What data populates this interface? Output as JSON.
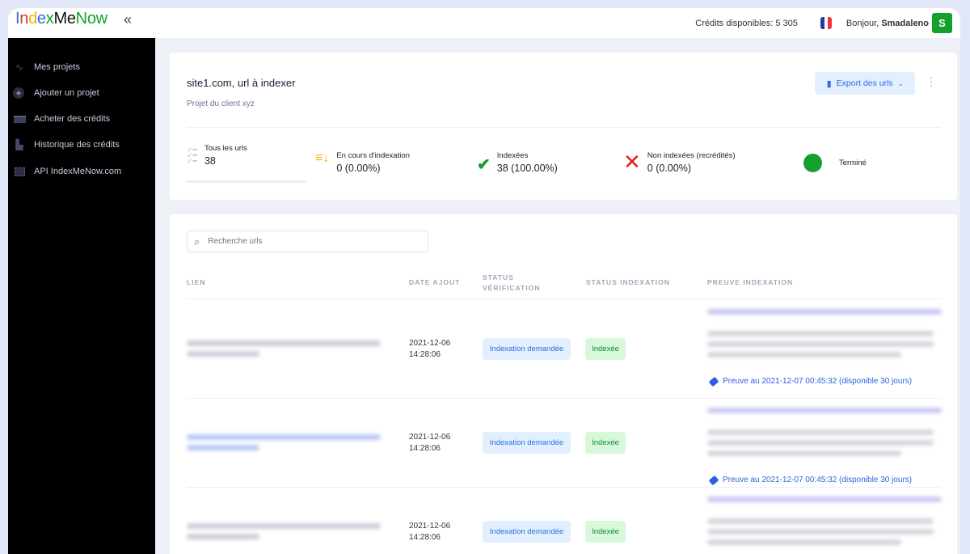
{
  "header": {
    "logo": [
      "I",
      "n",
      "d",
      "e",
      "x",
      "M",
      "e",
      "N",
      "o",
      "w"
    ],
    "logo_colors": [
      "#2a6fe0",
      "#e03030",
      "#f0b400",
      "#2a6fe0",
      "#14a02c",
      "#111111",
      "#111111",
      "#14a02c",
      "#14a02c",
      "#14a02c"
    ],
    "credits": "Crédits disponibles: 5 305",
    "greeting": "Bonjour, ",
    "user": "Smadaleno",
    "avatar": "S"
  },
  "sidebar": {
    "items": [
      {
        "label": "Mes projets",
        "icon": "pulse-icon"
      },
      {
        "label": "Ajouter un projet",
        "icon": "plus-circle-icon"
      },
      {
        "label": "Acheter des crédits",
        "icon": "credit-card-icon"
      },
      {
        "label": "Historique des crédits",
        "icon": "bar-chart-icon"
      },
      {
        "label": "API IndexMeNow.com",
        "icon": "chip-icon"
      }
    ]
  },
  "project": {
    "title": "site1.com, url à indexer",
    "subtitle": "Projet du client xyz",
    "export_label": "Export des urls"
  },
  "stats": {
    "all": {
      "label": "Tous les urls",
      "value": "38"
    },
    "pending": {
      "label": "En cours d'indexation",
      "value": "0 (0.00%)"
    },
    "indexed": {
      "label": "Indexées",
      "value": "38 (100.00%)"
    },
    "not_indexed": {
      "label": "Non indexées (recrédités)",
      "value": "0 (0.00%)"
    },
    "status": {
      "label": "Terminé",
      "progress": 100
    }
  },
  "colors": {
    "accent": "#2d6ee0",
    "success": "#14a02c",
    "warning": "#f0b400",
    "danger": "#e02020"
  },
  "table": {
    "search_placeholder": "Recherche urls",
    "headers": [
      "LIEN",
      "DATE AJOUT",
      "STATUS VÉRIFICATION",
      "STATUS INDEXATION",
      "PREUVE INDEXATION"
    ],
    "rows": [
      {
        "date": "2021-12-06",
        "time": "14:28:06",
        "verification": "Indexation demandée",
        "indexation": "Indexée",
        "proof": "Preuve au 2021-12-07 00:45:32 (disponible 30 jours)"
      },
      {
        "date": "2021-12-06",
        "time": "14:28:06",
        "verification": "Indexation demandée",
        "indexation": "Indexée",
        "proof": "Preuve au 2021-12-07 00:45:32 (disponible 30 jours)"
      },
      {
        "date": "2021-12-06",
        "time": "14:28:06",
        "verification": "Indexation demandée",
        "indexation": "Indexée",
        "proof": ""
      }
    ]
  }
}
